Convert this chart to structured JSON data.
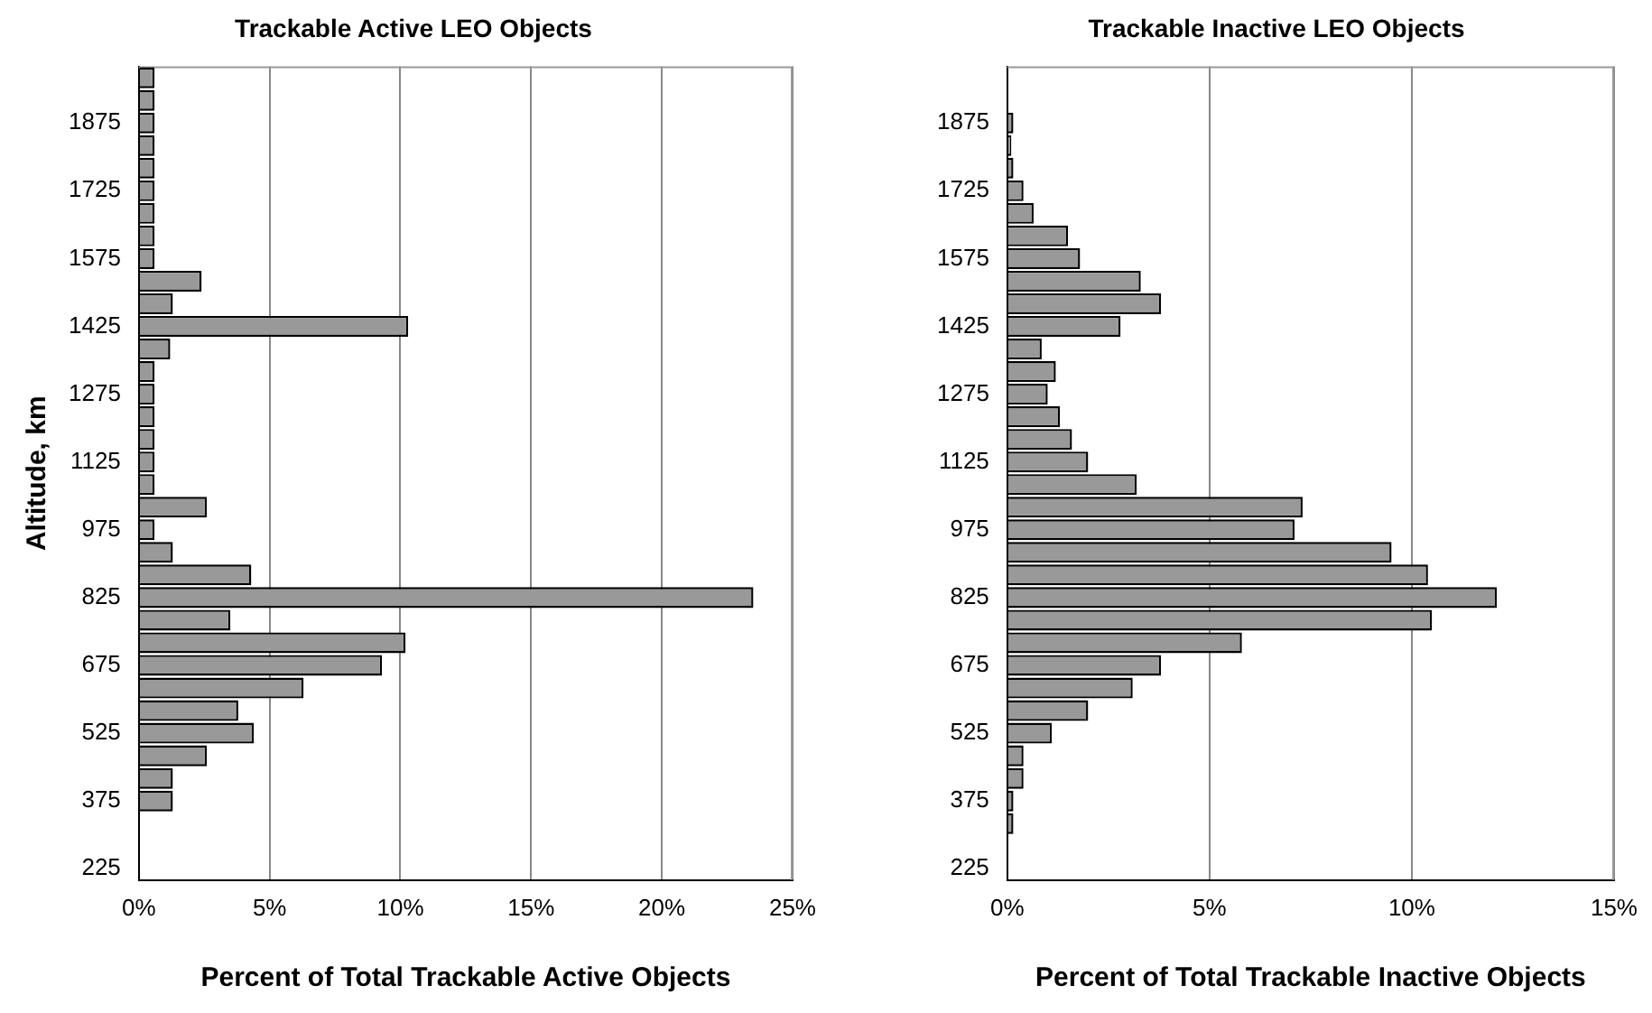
{
  "chart_data": [
    {
      "type": "bar",
      "orientation": "horizontal",
      "title": "Trackable Active LEO Objects",
      "xlabel": "Percent of Total Trackable Active Objects",
      "ylabel": "Altitude, km",
      "color": "#999999",
      "categories": [
        null,
        null,
        "1875",
        null,
        null,
        "1725",
        null,
        null,
        "1575",
        null,
        null,
        "1425",
        null,
        null,
        "1275",
        null,
        null,
        "1125",
        null,
        null,
        "975",
        null,
        null,
        "825",
        null,
        null,
        "675",
        null,
        null,
        "525",
        null,
        null,
        "375",
        null,
        null,
        "225"
      ],
      "values": [
        0.6,
        0.6,
        0.6,
        0.6,
        0.6,
        0.6,
        0.6,
        0.6,
        0.6,
        2.4,
        1.3,
        10.3,
        1.2,
        0.6,
        0.6,
        0.6,
        0.6,
        0.6,
        0.6,
        2.6,
        0.6,
        1.3,
        4.3,
        23.5,
        3.5,
        10.2,
        9.3,
        6.3,
        3.8,
        4.4,
        2.6,
        1.3,
        1.3,
        0,
        0,
        0
      ],
      "xlim": [
        0,
        25
      ],
      "xticks": [
        {
          "value": 0,
          "label": "0%"
        },
        {
          "value": 5,
          "label": "5%"
        },
        {
          "value": 10,
          "label": "10%"
        },
        {
          "value": 15,
          "label": "15%"
        },
        {
          "value": 20,
          "label": "20%"
        },
        {
          "value": 25,
          "label": "25%"
        }
      ],
      "grid": "x",
      "legend": false
    },
    {
      "type": "bar",
      "orientation": "horizontal",
      "title": "Trackable Inactive LEO Objects",
      "xlabel": "Percent of Total Trackable Inactive Objects",
      "color": "#999999",
      "categories": [
        null,
        null,
        "1875",
        null,
        null,
        "1725",
        null,
        null,
        "1575",
        null,
        null,
        "1425",
        null,
        null,
        "1275",
        null,
        null,
        "1125",
        null,
        null,
        "975",
        null,
        null,
        "825",
        null,
        null,
        "675",
        null,
        null,
        "525",
        null,
        null,
        "375",
        null,
        null,
        "225"
      ],
      "values": [
        0,
        0,
        0.15,
        0.1,
        0.15,
        0.4,
        0.65,
        1.5,
        1.8,
        3.3,
        3.8,
        2.8,
        0.85,
        1.2,
        1.0,
        1.3,
        1.6,
        2.0,
        3.2,
        7.3,
        7.1,
        9.5,
        10.4,
        12.1,
        10.5,
        5.8,
        3.8,
        3.1,
        2.0,
        1.1,
        0.4,
        0.4,
        0.15,
        0.15,
        0,
        0
      ],
      "xlim": [
        0,
        15
      ],
      "xticks": [
        {
          "value": 0,
          "label": "0%"
        },
        {
          "value": 5,
          "label": "5%"
        },
        {
          "value": 10,
          "label": "10%"
        },
        {
          "value": 15,
          "label": "15%"
        }
      ],
      "grid": "x",
      "legend": false
    }
  ]
}
